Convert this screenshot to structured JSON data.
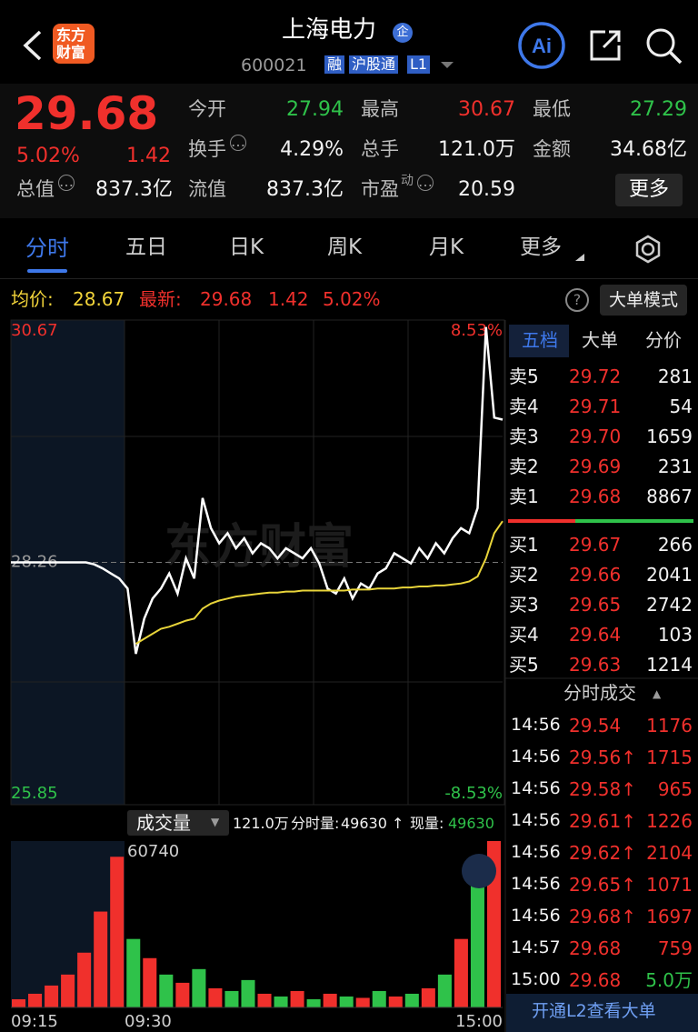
{
  "header": {
    "logo": [
      "东方",
      "财富"
    ],
    "title": "上海电力",
    "badge": "企",
    "code": "600021",
    "tags": [
      "融",
      "沪股通",
      "L1"
    ]
  },
  "quote": {
    "price": "29.68",
    "change_pct": "5.02%",
    "change": "1.42",
    "more": "更多",
    "stats": [
      {
        "label": "今开",
        "value": "27.94",
        "tone": "g"
      },
      {
        "label": "最高",
        "value": "30.67",
        "tone": "r"
      },
      {
        "label": "最低",
        "value": "27.29",
        "tone": "g"
      },
      {
        "label": "换手",
        "value": "4.29%",
        "tone": "w",
        "info": true
      },
      {
        "label": "总手",
        "value": "121.0万",
        "tone": "w"
      },
      {
        "label": "金额",
        "value": "34.68亿",
        "tone": "w"
      },
      {
        "label": "总值",
        "value": "837.3亿",
        "tone": "w",
        "info": true
      },
      {
        "label": "流值",
        "value": "837.3亿",
        "tone": "w"
      },
      {
        "label": "市盈",
        "sup": "动",
        "value": "20.59",
        "tone": "w",
        "info": true
      }
    ]
  },
  "tabs": [
    "分时",
    "五日",
    "日K",
    "周K",
    "月K",
    "更多"
  ],
  "info": {
    "avg_label": "均价:",
    "avg": "28.67",
    "latest_label": "最新:",
    "latest": "29.68",
    "latest_change": "1.42",
    "latest_pct": "5.02%",
    "mode": "大单模式"
  },
  "chart_data": {
    "type": "line",
    "watermark": "东方财富",
    "ylim": [
      25.85,
      30.67
    ],
    "yticks": [
      25.85,
      28.26,
      30.67
    ],
    "pct_labels": [
      "8.53%",
      "-8.53%"
    ],
    "series": [
      {
        "name": "price",
        "color": "#ffffff",
        "values": [
          28.26,
          28.26,
          28.26,
          28.26,
          28.26,
          28.26,
          28.26,
          28.26,
          28.26,
          28.26,
          28.24,
          28.2,
          28.15,
          28.1,
          28.0,
          27.35,
          27.7,
          27.9,
          28.0,
          28.15,
          27.95,
          28.3,
          28.1,
          28.9,
          28.6,
          28.45,
          28.55,
          28.4,
          28.5,
          28.35,
          28.45,
          28.4,
          28.3,
          28.4,
          28.35,
          28.3,
          28.4,
          28.25,
          28.0,
          27.95,
          28.1,
          27.9,
          28.05,
          28.0,
          28.15,
          28.2,
          28.35,
          28.3,
          28.25,
          28.4,
          28.3,
          28.45,
          28.35,
          28.5,
          28.6,
          28.55,
          28.8,
          30.6,
          29.7,
          29.68
        ]
      },
      {
        "name": "avg",
        "color": "#e8d43a",
        "values": [
          null,
          null,
          null,
          null,
          null,
          null,
          null,
          null,
          null,
          null,
          null,
          null,
          null,
          null,
          null,
          27.45,
          27.5,
          27.55,
          27.6,
          27.62,
          27.65,
          27.68,
          27.7,
          27.8,
          27.85,
          27.88,
          27.9,
          27.92,
          27.93,
          27.94,
          27.95,
          27.96,
          27.96,
          27.97,
          27.97,
          27.98,
          27.98,
          27.98,
          27.98,
          27.98,
          27.98,
          27.99,
          27.99,
          27.99,
          28.0,
          28.0,
          28.0,
          28.01,
          28.01,
          28.02,
          28.02,
          28.03,
          28.03,
          28.04,
          28.05,
          28.07,
          28.12,
          28.3,
          28.55,
          28.67
        ]
      }
    ]
  },
  "volume": {
    "title": "成交量",
    "total": "121.0万",
    "minute_label": "分时量:",
    "minute": "49630 ↑",
    "now_label": "现量:",
    "now": "49630",
    "ylim": [
      0,
      60740
    ],
    "ymax_label": "60740",
    "times": [
      "09:15",
      "09:30",
      "15:00"
    ],
    "values": [
      3000,
      5000,
      8000,
      12000,
      20000,
      35000,
      55000,
      25000,
      18000,
      12000,
      9000,
      14000,
      7000,
      6000,
      10000,
      5000,
      4000,
      6000,
      3000,
      5000,
      4000,
      3500,
      6000,
      4000,
      5000,
      7000,
      12000,
      25000,
      45000,
      60740
    ],
    "colors": [
      "#f0302c",
      "#f0302c",
      "#f0302c",
      "#f0302c",
      "#f0302c",
      "#f0302c",
      "#f0302c",
      "#2fc24a",
      "#f0302c",
      "#2fc24a",
      "#f0302c",
      "#2fc24a",
      "#f0302c",
      "#2fc24a",
      "#2fc24a",
      "#f0302c",
      "#2fc24a",
      "#f0302c",
      "#2fc24a",
      "#f0302c",
      "#2fc24a",
      "#f0302c",
      "#2fc24a",
      "#f0302c",
      "#2fc24a",
      "#f0302c",
      "#2fc24a",
      "#f0302c",
      "#2fc24a",
      "#f0302c"
    ]
  },
  "orderbook": {
    "tabs": [
      "五档",
      "大单",
      "分价"
    ],
    "asks": [
      [
        "卖5",
        "29.72",
        "281"
      ],
      [
        "卖4",
        "29.71",
        "54"
      ],
      [
        "卖3",
        "29.70",
        "1659"
      ],
      [
        "卖2",
        "29.69",
        "231"
      ],
      [
        "卖1",
        "29.68",
        "8867"
      ]
    ],
    "bids": [
      [
        "买1",
        "29.67",
        "266"
      ],
      [
        "买2",
        "29.66",
        "2041"
      ],
      [
        "买3",
        "29.65",
        "2742"
      ],
      [
        "买4",
        "29.64",
        "103"
      ],
      [
        "买5",
        "29.63",
        "1214"
      ]
    ],
    "trades_title": "分时成交",
    "trades": [
      [
        "14:56",
        "29.54",
        "1176",
        "r"
      ],
      [
        "14:56",
        "29.56↑",
        "1715",
        "r"
      ],
      [
        "14:56",
        "29.58↑",
        "965",
        "r"
      ],
      [
        "14:56",
        "29.61↑",
        "1226",
        "r"
      ],
      [
        "14:56",
        "29.62↑",
        "2104",
        "r"
      ],
      [
        "14:56",
        "29.65↑",
        "1071",
        "r"
      ],
      [
        "14:56",
        "29.68↑",
        "1697",
        "r"
      ],
      [
        "14:57",
        "29.68",
        "759",
        "r"
      ],
      [
        "15:00",
        "29.68",
        "5.0万",
        "g"
      ]
    ],
    "footer": "开通L2查看大单"
  }
}
